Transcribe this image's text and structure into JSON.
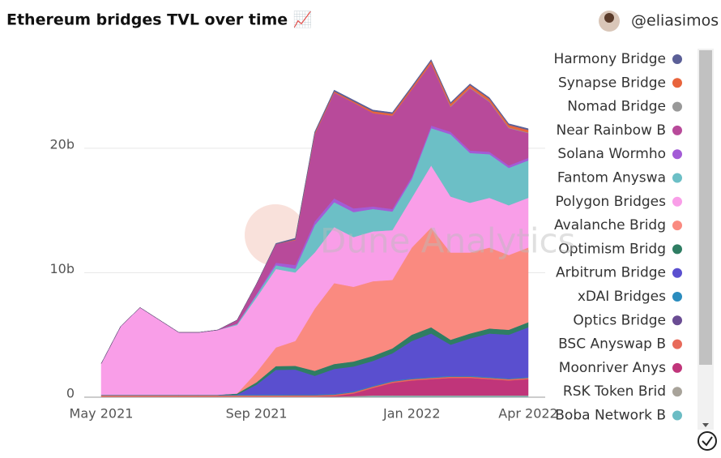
{
  "chart_data": {
    "type": "stacked_area",
    "title": "Ethereum bridges TVL over time 📈",
    "author": "@eliasimos",
    "watermark": "Dune Analytics",
    "x": [
      "May 2021",
      null,
      null,
      null,
      null,
      null,
      null,
      null,
      "Sep 2021",
      null,
      null,
      null,
      null,
      null,
      null,
      null,
      "Jan 2022",
      null,
      null,
      null,
      null,
      null,
      "Apr 2022"
    ],
    "ylim": [
      0,
      28
    ],
    "yticks": [
      0,
      {
        "value": 10,
        "label": "10b"
      },
      {
        "value": 20,
        "label": "20b"
      }
    ],
    "grid": true,
    "series": [
      {
        "name": "Harmony Bridge",
        "color": "#5b5f97",
        "values": [
          0,
          0,
          0,
          0,
          0,
          0,
          0,
          0,
          0,
          0.05,
          0.1,
          0.1,
          0.1,
          0.1,
          0.1,
          0.1,
          0.1,
          0.1,
          0.1,
          0.1,
          0.1,
          0.1,
          0.1
        ]
      },
      {
        "name": "Synapse Bridge",
        "color": "#e8643c",
        "values": [
          0,
          0,
          0,
          0,
          0,
          0,
          0,
          0,
          0,
          0,
          0.05,
          0.1,
          0.1,
          0.1,
          0.15,
          0.15,
          0.15,
          0.2,
          0.2,
          0.2,
          0.2,
          0.2,
          0.2
        ]
      },
      {
        "name": "Nomad Bridge",
        "color": "#999999",
        "values": [
          0,
          0,
          0,
          0,
          0,
          0,
          0,
          0,
          0,
          0,
          0,
          0,
          0,
          0,
          0,
          0,
          0,
          0,
          0.05,
          0.05,
          0.05,
          0.05,
          0.05
        ]
      },
      {
        "name": "Near Rainbow B",
        "color": "#b84a9a",
        "values": [
          0,
          0,
          0,
          0,
          0,
          0,
          0,
          0.3,
          0.8,
          1.5,
          2,
          7,
          8.5,
          8.5,
          7.5,
          7.5,
          7,
          5,
          2,
          5,
          4,
          3,
          2
        ]
      },
      {
        "name": "Solana Wormho",
        "color": "#a35bd6",
        "values": [
          0,
          0,
          0,
          0,
          0,
          0,
          0,
          0,
          0.1,
          0.2,
          0.3,
          0.3,
          0.3,
          0.3,
          0.2,
          0.2,
          0.2,
          0.2,
          0.2,
          0.2,
          0.2,
          0.2,
          0.2
        ]
      },
      {
        "name": "Fantom Anyswa",
        "color": "#6cbfc6",
        "values": [
          0,
          0,
          0,
          0,
          0,
          0,
          0,
          0.1,
          0.2,
          0.3,
          0.3,
          2.2,
          2,
          2,
          1.8,
          1.5,
          1.5,
          3,
          5,
          4,
          3.5,
          3,
          3
        ]
      },
      {
        "name": "Polygon Bridges",
        "color": "#f99ee8",
        "values": [
          2.5,
          5.5,
          7,
          6,
          5,
          5,
          5.2,
          5.5,
          6,
          6.3,
          5.5,
          4.5,
          4.5,
          4,
          4,
          4,
          4,
          5,
          4.5,
          4,
          4,
          4,
          4
        ]
      },
      {
        "name": "Avalanche Bridg",
        "color": "#fa8a80",
        "values": [
          0,
          0,
          0,
          0,
          0,
          0,
          0,
          0,
          0.8,
          1.5,
          2,
          5,
          6.5,
          6,
          6,
          5.5,
          7,
          8,
          7,
          6.5,
          6.5,
          6,
          6
        ]
      },
      {
        "name": "Optimism Bridg",
        "color": "#2f7d63",
        "values": [
          0,
          0,
          0,
          0,
          0,
          0,
          0,
          0.1,
          0.2,
          0.3,
          0.3,
          0.4,
          0.4,
          0.4,
          0.4,
          0.4,
          0.5,
          0.5,
          0.4,
          0.4,
          0.4,
          0.4,
          0.4
        ]
      },
      {
        "name": "Arbitrum Bridge",
        "color": "#5a4fcf",
        "values": [
          0,
          0,
          0,
          0,
          0,
          0,
          0,
          0,
          0.8,
          2,
          2,
          1.5,
          2,
          2,
          2,
          2.2,
          3,
          3.5,
          2.5,
          3,
          3.5,
          3.5,
          4
        ]
      },
      {
        "name": "xDAI Bridges",
        "color": "#2b8cbe",
        "values": [
          0.05,
          0.05,
          0.05,
          0.05,
          0.05,
          0.05,
          0.05,
          0.05,
          0.05,
          0.05,
          0.05,
          0.05,
          0.05,
          0.05,
          0.05,
          0.05,
          0.05,
          0.05,
          0.05,
          0.05,
          0.05,
          0.05,
          0.05
        ]
      },
      {
        "name": "Optics Bridge",
        "color": "#6a4c93",
        "values": [
          0,
          0,
          0,
          0,
          0,
          0,
          0,
          0,
          0,
          0,
          0.02,
          0.02,
          0.02,
          0.02,
          0.02,
          0.02,
          0.02,
          0.02,
          0.02,
          0.02,
          0.02,
          0.02,
          0.02
        ]
      },
      {
        "name": "BSC Anyswap B",
        "color": "#e86a5a",
        "values": [
          0.1,
          0.1,
          0.1,
          0.1,
          0.1,
          0.1,
          0.1,
          0.1,
          0.1,
          0.1,
          0.1,
          0.1,
          0.1,
          0.1,
          0.1,
          0.1,
          0.1,
          0.1,
          0.1,
          0.1,
          0.1,
          0.1,
          0.1
        ]
      },
      {
        "name": "Moonriver Anys",
        "color": "#c0357a",
        "values": [
          0,
          0,
          0,
          0,
          0,
          0,
          0,
          0,
          0,
          0,
          0,
          0,
          0.05,
          0.2,
          0.6,
          1,
          1.2,
          1.3,
          1.4,
          1.4,
          1.3,
          1.2,
          1.3
        ]
      },
      {
        "name": "RSK Token Brid",
        "color": "#a8a39a",
        "values": [
          0.05,
          0.05,
          0.05,
          0.05,
          0.05,
          0.05,
          0.05,
          0.05,
          0.05,
          0.05,
          0.05,
          0.05,
          0.05,
          0.05,
          0.05,
          0.05,
          0.05,
          0.05,
          0.05,
          0.05,
          0.05,
          0.05,
          0.05
        ]
      },
      {
        "name": "Boba Network B",
        "color": "#6bbcc4",
        "values": [
          0,
          0,
          0,
          0,
          0,
          0,
          0,
          0,
          0,
          0,
          0,
          0,
          0,
          0.05,
          0.1,
          0.1,
          0.1,
          0.1,
          0.1,
          0.1,
          0.1,
          0.1,
          0.1
        ]
      }
    ]
  }
}
